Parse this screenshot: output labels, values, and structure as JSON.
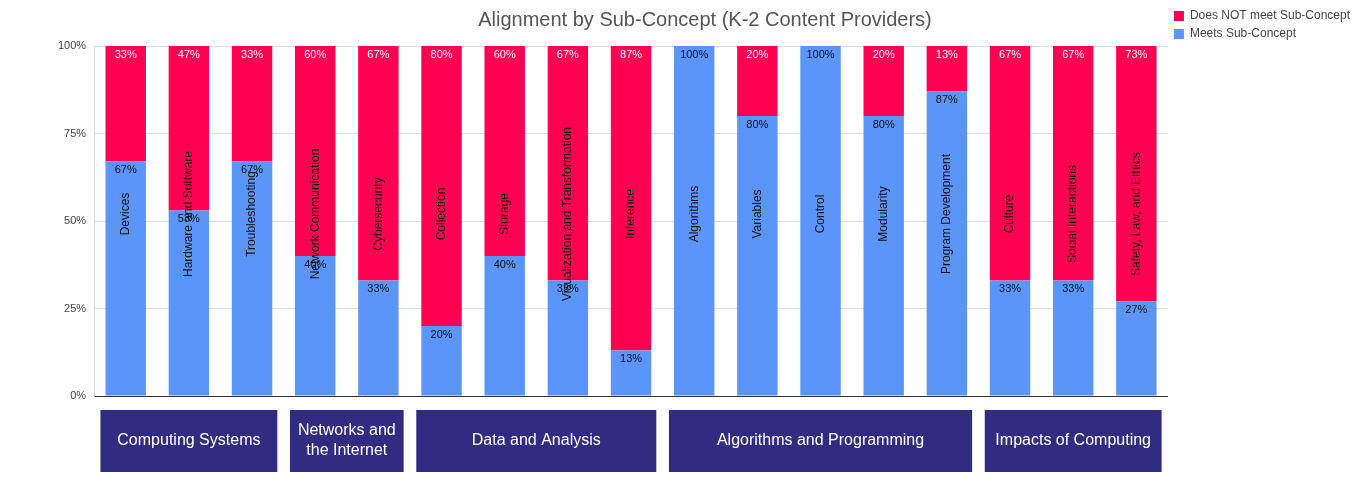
{
  "chart_data": {
    "type": "bar",
    "title": "Alignment by Sub-Concept (K-2 Content Providers)",
    "categories": [
      "Devices",
      "Hardware and Software",
      "Troubleshooting",
      "Network Communication",
      "Cybersecurity",
      "Collection",
      "Storage",
      "Visualization and Transformation",
      "Inference",
      "Algorithms",
      "Variables",
      "Control",
      "Modularity",
      "Program Development",
      "Culture",
      "Social Interactions",
      "Safety, Law, and Ethics"
    ],
    "series": [
      {
        "name": "Meets Sub-Concept",
        "color": "#5b95f9",
        "values": [
          67,
          53,
          67,
          40,
          33,
          20,
          40,
          33,
          13,
          100,
          80,
          100,
          80,
          87,
          33,
          33,
          27
        ],
        "value_labels": [
          "67%",
          "53%",
          "67%",
          "40%",
          "33%",
          "20%",
          "40%",
          "33%",
          "13%",
          "100%",
          "80%",
          "100%",
          "80%",
          "87%",
          "33%",
          "33%",
          "27%"
        ]
      },
      {
        "name": "Does NOT meet Sub-Concept",
        "color": "#ff0052",
        "values": [
          33,
          47,
          33,
          60,
          67,
          80,
          60,
          67,
          87,
          0,
          20,
          0,
          20,
          13,
          67,
          67,
          73
        ],
        "value_labels": [
          "33%",
          "47%",
          "33%",
          "60%",
          "67%",
          "80%",
          "60%",
          "67%",
          "87%",
          null,
          "20%",
          null,
          "20%",
          "13%",
          "67%",
          "67%",
          "73%"
        ]
      }
    ],
    "groups": [
      {
        "label": "Computing Systems",
        "members": [
          "Devices",
          "Hardware and Software",
          "Troubleshooting"
        ]
      },
      {
        "label": "Networks and the Internet",
        "members": [
          "Network Communication",
          "Cybersecurity"
        ]
      },
      {
        "label": "Data and Analysis",
        "members": [
          "Collection",
          "Storage",
          "Visualization and Transformation",
          "Inference"
        ]
      },
      {
        "label": "Algorithms and Programming",
        "members": [
          "Algorithms",
          "Variables",
          "Control",
          "Modularity",
          "Program Development"
        ]
      },
      {
        "label": "Impacts of Computing",
        "members": [
          "Culture",
          "Social Interactions",
          "Safety, Law, and Ethics"
        ]
      }
    ],
    "ylim": [
      0,
      100
    ],
    "yticks": [
      {
        "value": 0,
        "label": "0%"
      },
      {
        "value": 25,
        "label": "25%"
      },
      {
        "value": 50,
        "label": "50%"
      },
      {
        "value": 75,
        "label": "75%"
      },
      {
        "value": 100,
        "label": "100%"
      }
    ],
    "stacked": true,
    "grid": true,
    "legend": "right",
    "data_labels": true,
    "tick_labels": "y"
  }
}
